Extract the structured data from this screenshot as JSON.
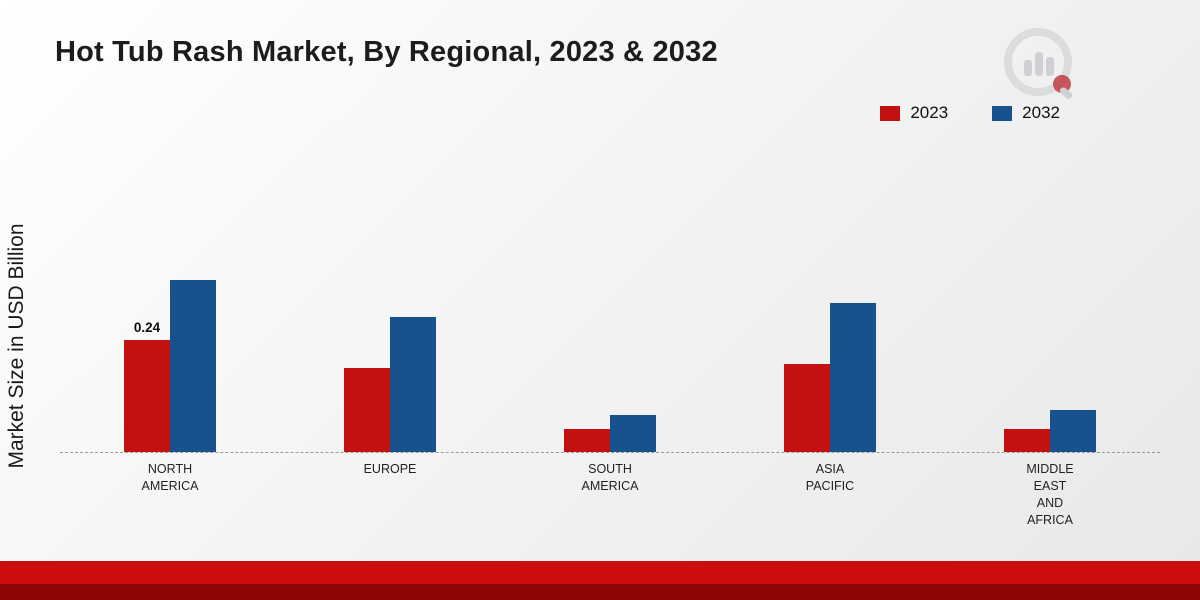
{
  "title": "Hot Tub Rash Market, By Regional, 2023 & 2032",
  "y_axis_label": "Market Size in USD Billion",
  "legend": {
    "items": [
      {
        "label": "2023",
        "color": "#c31111"
      },
      {
        "label": "2032",
        "color": "#17518e"
      }
    ]
  },
  "chart_data": {
    "type": "bar",
    "title": "Hot Tub Rash Market, By Regional, 2023 & 2032",
    "xlabel": "",
    "ylabel": "Market Size in USD Billion",
    "ylim": [
      0,
      0.4
    ],
    "grid": false,
    "legend_position": "top-right",
    "baseline_style": "dashed",
    "categories": [
      "NORTH AMERICA",
      "EUROPE",
      "SOUTH AMERICA",
      "ASIA PACIFIC",
      "MIDDLE EAST AND AFRICA"
    ],
    "category_display_lines": [
      "NORTH\nAMERICA",
      "EUROPE",
      "SOUTH\nAMERICA",
      "ASIA\nPACIFIC",
      "MIDDLE\nEAST\nAND\nAFRICA"
    ],
    "series": [
      {
        "name": "2023",
        "color": "#c31111",
        "values": [
          0.24,
          0.18,
          0.05,
          0.19,
          0.05
        ]
      },
      {
        "name": "2032",
        "color": "#17518e",
        "values": [
          0.37,
          0.29,
          0.08,
          0.32,
          0.09
        ]
      }
    ],
    "data_labels": [
      {
        "series": "2023",
        "category": "NORTH AMERICA",
        "text": "0.24"
      }
    ]
  },
  "footer": {
    "strip_light_color": "#cb0d0d",
    "strip_dark_color": "#8f0404"
  }
}
